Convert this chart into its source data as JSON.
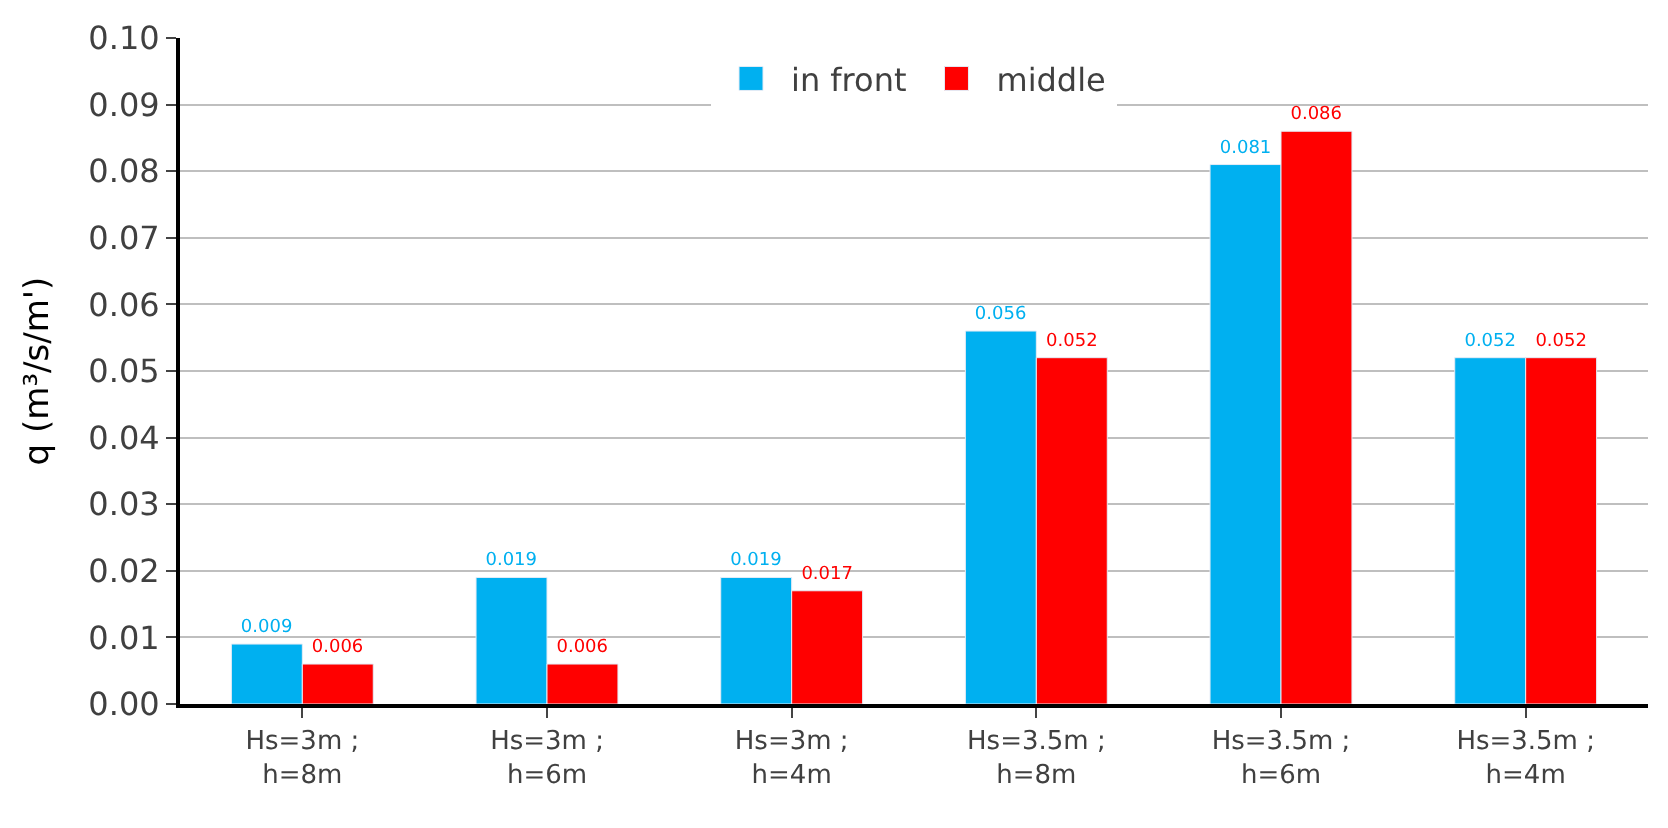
{
  "chart_data": {
    "type": "bar",
    "ylabel": "q (m³/s/m')",
    "categories": [
      "Hs=3m ;\nh=8m",
      "Hs=3m ;\nh=6m",
      "Hs=3m ;\nh=4m",
      "Hs=3.5m ;\nh=8m",
      "Hs=3.5m ;\nh=6m",
      "Hs=3.5m ;\nh=4m"
    ],
    "series": [
      {
        "name": "in front",
        "color": "#00b0f0",
        "values": [
          0.009,
          0.019,
          0.019,
          0.056,
          0.081,
          0.052
        ]
      },
      {
        "name": "middle",
        "color": "#ff0000",
        "values": [
          0.006,
          0.006,
          0.017,
          0.052,
          0.086,
          0.052
        ]
      }
    ],
    "ylim": [
      0,
      0.1
    ],
    "yticks": [
      {
        "value": 0,
        "label": "0.00"
      },
      {
        "value": 0.01,
        "label": "0.01"
      },
      {
        "value": 0.02,
        "label": "0.02"
      },
      {
        "value": 0.03,
        "label": "0.03"
      },
      {
        "value": 0.04,
        "label": "0.04"
      },
      {
        "value": 0.05,
        "label": "0.05"
      },
      {
        "value": 0.06,
        "label": "0.06"
      },
      {
        "value": 0.07,
        "label": "0.07"
      },
      {
        "value": 0.08,
        "label": "0.08"
      },
      {
        "value": 0.09,
        "label": "0.09"
      },
      {
        "value": 0.1,
        "label": "0.10"
      }
    ],
    "grid": "y",
    "legend": "top",
    "data_labels": true
  }
}
